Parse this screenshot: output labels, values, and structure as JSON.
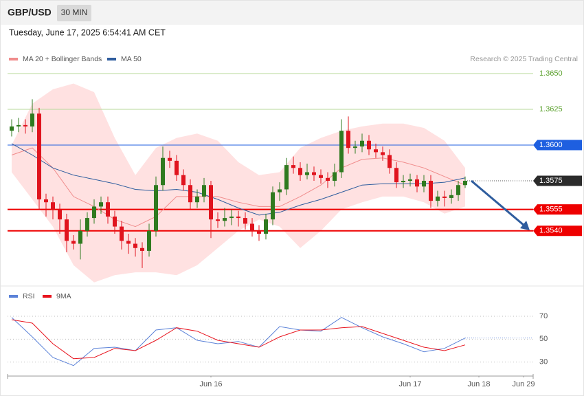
{
  "header": {
    "symbol": "GBP/USD",
    "timeframe": "30 MIN",
    "timestamp": "Tuesday, June 17, 2025 6:54:41 AM CET",
    "credit": "Research © 2025 Trading Central"
  },
  "chart_data": [
    {
      "type": "candlestick",
      "xlim": [
        -1,
        76
      ],
      "ylim": [
        1.35,
        1.3656
      ],
      "candles": {
        "up_color": "#2f7a1f",
        "down_color": "#e0141e",
        "open": [
          1.361,
          1.3613,
          1.3614,
          1.3613,
          1.3622,
          1.3562,
          1.356,
          1.3555,
          1.3548,
          1.3533,
          1.3531,
          1.354,
          1.3549,
          1.3557,
          1.356,
          1.355,
          1.3543,
          1.3533,
          1.3531,
          1.3528,
          1.3526,
          1.354,
          1.3572,
          1.3591,
          1.3589,
          1.3579,
          1.3572,
          1.356,
          1.3564,
          1.3572,
          1.3548,
          1.3547,
          1.3549,
          1.355,
          1.3549,
          1.3545,
          1.354,
          1.3538,
          1.3548,
          1.3567,
          1.3569,
          1.3586,
          1.3584,
          1.3579,
          1.3581,
          1.3579,
          1.3577,
          1.3575,
          1.3581,
          1.361,
          1.3598,
          1.3599,
          1.3603,
          1.3597,
          1.3595,
          1.3593,
          1.3584,
          1.3574,
          1.3575,
          1.3576,
          1.3571,
          1.3575,
          1.3561,
          1.3564,
          1.3563,
          1.3565,
          1.3572
        ],
        "high": [
          1.3618,
          1.3619,
          1.3618,
          1.3632,
          1.3626,
          1.3566,
          1.3564,
          1.3559,
          1.3552,
          1.3537,
          1.3548,
          1.3553,
          1.3562,
          1.3564,
          1.3564,
          1.3554,
          1.3547,
          1.3538,
          1.3535,
          1.3532,
          1.3545,
          1.3578,
          1.3599,
          1.3596,
          1.3593,
          1.3583,
          1.3576,
          1.3569,
          1.3577,
          1.3575,
          1.3553,
          1.3556,
          1.3555,
          1.3554,
          1.3553,
          1.3549,
          1.3544,
          1.3552,
          1.3571,
          1.3574,
          1.3591,
          1.3592,
          1.3588,
          1.3587,
          1.3585,
          1.3583,
          1.3581,
          1.3587,
          1.3618,
          1.362,
          1.3603,
          1.3608,
          1.3607,
          1.3601,
          1.3599,
          1.3597,
          1.3588,
          1.3579,
          1.358,
          1.3579,
          1.3579,
          1.3579,
          1.3568,
          1.3568,
          1.3569,
          1.3575,
          1.3578
        ],
        "low": [
          1.3606,
          1.3609,
          1.3608,
          1.3609,
          1.3555,
          1.355,
          1.3548,
          1.3538,
          1.3525,
          1.3527,
          1.352,
          1.3536,
          1.3545,
          1.3552,
          1.3545,
          1.3538,
          1.3527,
          1.3524,
          1.3522,
          1.3514,
          1.3522,
          1.3536,
          1.3568,
          1.3584,
          1.3575,
          1.3568,
          1.3555,
          1.3556,
          1.356,
          1.3535,
          1.3542,
          1.3543,
          1.3544,
          1.3543,
          1.3541,
          1.3536,
          1.3533,
          1.3534,
          1.3544,
          1.3561,
          1.3565,
          1.358,
          1.3575,
          1.3576,
          1.3575,
          1.3573,
          1.357,
          1.3571,
          1.3577,
          1.3594,
          1.3594,
          1.3595,
          1.3593,
          1.3591,
          1.3589,
          1.358,
          1.357,
          1.357,
          1.3571,
          1.3567,
          1.3567,
          1.3556,
          1.3557,
          1.3557,
          1.3559,
          1.3561,
          1.357
        ],
        "close": [
          1.3613,
          1.3614,
          1.3613,
          1.3622,
          1.3562,
          1.356,
          1.3555,
          1.3548,
          1.3533,
          1.3531,
          1.354,
          1.3549,
          1.3557,
          1.356,
          1.355,
          1.3543,
          1.3533,
          1.3531,
          1.3528,
          1.3526,
          1.354,
          1.3572,
          1.3591,
          1.3589,
          1.3579,
          1.3572,
          1.356,
          1.3564,
          1.3572,
          1.3548,
          1.3547,
          1.3549,
          1.355,
          1.3549,
          1.3545,
          1.354,
          1.3538,
          1.3548,
          1.3567,
          1.3569,
          1.3586,
          1.3584,
          1.3579,
          1.3581,
          1.3579,
          1.3577,
          1.3575,
          1.3581,
          1.361,
          1.3598,
          1.3599,
          1.3603,
          1.3597,
          1.3595,
          1.3593,
          1.3584,
          1.3574,
          1.3575,
          1.3576,
          1.3571,
          1.3575,
          1.3561,
          1.3564,
          1.3563,
          1.3565,
          1.3572,
          1.3575
        ]
      },
      "series": [
        {
          "name": "MA 20 + Bollinger Bands",
          "color": "#f08c8c",
          "band_color": "#ffe1e1",
          "x": [
            0,
            3,
            6,
            9,
            12,
            15,
            18,
            21,
            24,
            27,
            30,
            33,
            36,
            39,
            42,
            45,
            48,
            51,
            54,
            57,
            60,
            63,
            66
          ],
          "values": [
            1.3593,
            1.3598,
            1.3584,
            1.3564,
            1.3557,
            1.3548,
            1.3543,
            1.355,
            1.3564,
            1.3564,
            1.3564,
            1.356,
            1.3557,
            1.3557,
            1.3564,
            1.3572,
            1.3584,
            1.359,
            1.3591,
            1.3588,
            1.3584,
            1.3578,
            1.3572
          ],
          "upper": [
            1.36,
            1.3629,
            1.3639,
            1.3643,
            1.3637,
            1.3605,
            1.3579,
            1.3598,
            1.3605,
            1.3608,
            1.3603,
            1.3588,
            1.3579,
            1.3581,
            1.3598,
            1.3605,
            1.361,
            1.3613,
            1.3615,
            1.3615,
            1.3612,
            1.3603,
            1.3584
          ],
          "lower": [
            1.3581,
            1.3562,
            1.3543,
            1.3516,
            1.3504,
            1.3509,
            1.3511,
            1.3511,
            1.3509,
            1.3516,
            1.3528,
            1.354,
            1.3548,
            1.3543,
            1.3528,
            1.354,
            1.3555,
            1.356,
            1.3564,
            1.3564,
            1.356,
            1.3552,
            1.3557
          ]
        },
        {
          "name": "MA 50",
          "color": "#2f5d9e",
          "x": [
            0,
            3,
            6,
            9,
            12,
            15,
            18,
            21,
            24,
            27,
            30,
            33,
            36,
            39,
            42,
            45,
            48,
            51,
            54,
            57,
            60,
            63,
            66
          ],
          "values": [
            1.3601,
            1.3593,
            1.3584,
            1.3579,
            1.3576,
            1.3573,
            1.3569,
            1.3568,
            1.3569,
            1.3567,
            1.3562,
            1.3556,
            1.3551,
            1.3553,
            1.3558,
            1.3562,
            1.3567,
            1.3572,
            1.3573,
            1.3573,
            1.3573,
            1.3574,
            1.3577
          ]
        }
      ],
      "levels": [
        {
          "value": 1.365,
          "label": "1.3650",
          "color": "#5aa02c",
          "line_color": "#b7d99a",
          "boxed": false
        },
        {
          "value": 1.3625,
          "label": "1.3625",
          "color": "#5aa02c",
          "line_color": "#b7d99a",
          "boxed": false
        },
        {
          "value": 1.36,
          "label": "1.3600",
          "color": "#1e5fe0",
          "line_color": "#1e5fe0",
          "boxed": true
        },
        {
          "value": 1.3575,
          "label": "1.3575",
          "color": "#2b2b2b",
          "line_color": "#555555",
          "boxed": true,
          "dotted": true
        },
        {
          "value": 1.3555,
          "label": "1.3555",
          "color": "#ee0000",
          "line_color": "#ee0000",
          "boxed": true
        },
        {
          "value": 1.354,
          "label": "1.3540",
          "color": "#ee0000",
          "line_color": "#ee0000",
          "boxed": true
        }
      ]
    },
    {
      "type": "line",
      "xlim": [
        -1,
        76
      ],
      "ylim": [
        22,
        79
      ],
      "yticks": [
        70,
        50,
        30
      ],
      "xticks": [
        {
          "value": 29,
          "label": "Jun 16"
        },
        {
          "value": 58,
          "label": "Jun 17"
        },
        {
          "value": 68,
          "label": "Jun 18"
        },
        {
          "value": 74.5,
          "label": "Jun 29"
        }
      ],
      "series": [
        {
          "name": "RSI",
          "color": "#5b82d8",
          "x": [
            0,
            3,
            6,
            9,
            12,
            15,
            18,
            21,
            24,
            27,
            30,
            33,
            36,
            39,
            42,
            45,
            48,
            51,
            54,
            57,
            60,
            63,
            66
          ],
          "values": [
            69,
            52,
            34,
            27,
            42,
            43,
            40,
            58,
            60,
            49,
            46,
            48,
            43,
            61,
            58,
            57,
            69,
            60,
            52,
            46,
            39,
            42,
            51
          ]
        },
        {
          "name": "9MA",
          "color": "#e8141e",
          "x": [
            0,
            3,
            6,
            9,
            12,
            15,
            18,
            21,
            24,
            27,
            30,
            33,
            36,
            39,
            42,
            45,
            48,
            51,
            54,
            57,
            60,
            63,
            66
          ],
          "values": [
            67,
            64,
            46,
            33,
            34,
            42,
            40,
            49,
            60,
            57,
            49,
            46,
            43,
            52,
            58,
            58,
            60,
            61,
            55,
            49,
            43,
            40,
            45
          ]
        }
      ]
    }
  ]
}
